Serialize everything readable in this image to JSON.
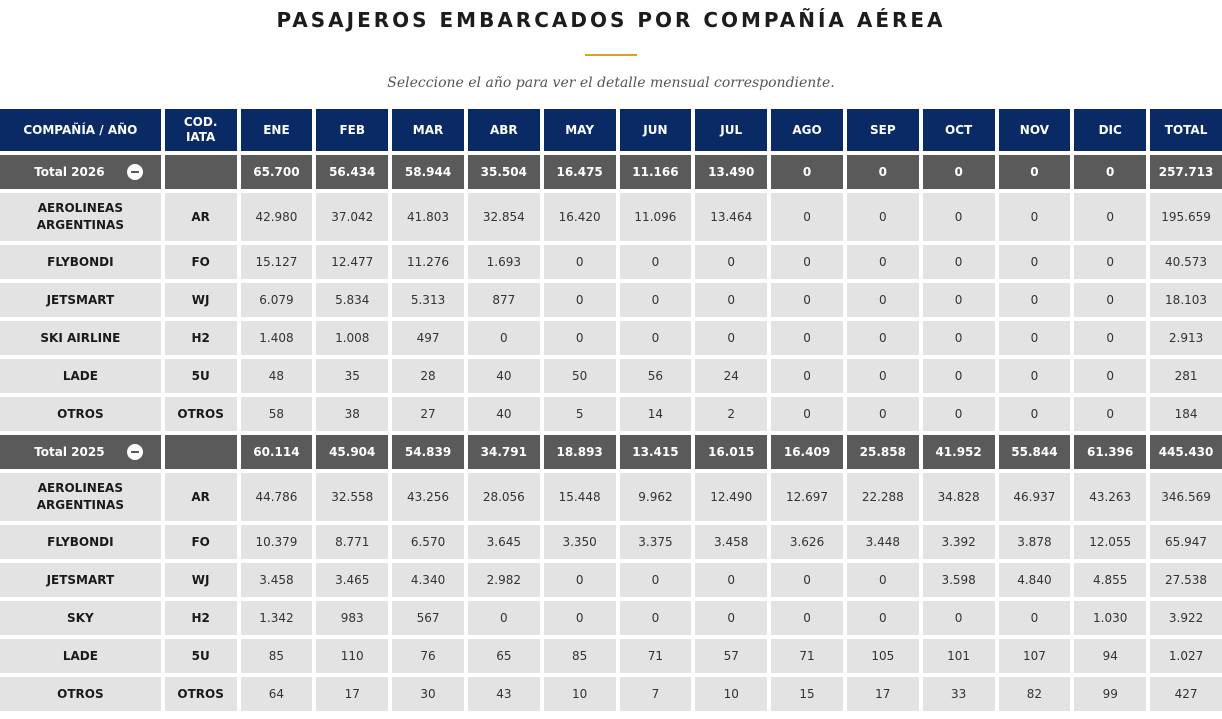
{
  "page": {
    "title": "PASAJEROS EMBARCADOS POR COMPAÑÍA AÉREA",
    "subtitle": "Seleccione el año para ver el detalle mensual correspondiente."
  },
  "headers": {
    "company": "COMPAÑÍA / AÑO",
    "iata": "COD. IATA",
    "months": [
      "ENE",
      "FEB",
      "MAR",
      "ABR",
      "MAY",
      "JUN",
      "JUL",
      "AGO",
      "SEP",
      "OCT",
      "NOV",
      "DIC"
    ],
    "total": "TOTAL"
  },
  "years": [
    {
      "label": "Total 2026",
      "totals": [
        "65.700",
        "56.434",
        "58.944",
        "35.504",
        "16.475",
        "11.166",
        "13.490",
        "0",
        "0",
        "0",
        "0",
        "0"
      ],
      "grand_total": "257.713",
      "rows": [
        {
          "company": "AEROLINEAS ARGENTINAS",
          "code": "AR",
          "values": [
            "42.980",
            "37.042",
            "41.803",
            "32.854",
            "16.420",
            "11.096",
            "13.464",
            "0",
            "0",
            "0",
            "0",
            "0"
          ],
          "total": "195.659"
        },
        {
          "company": "FLYBONDI",
          "code": "FO",
          "values": [
            "15.127",
            "12.477",
            "11.276",
            "1.693",
            "0",
            "0",
            "0",
            "0",
            "0",
            "0",
            "0",
            "0"
          ],
          "total": "40.573"
        },
        {
          "company": "JETSMART",
          "code": "WJ",
          "values": [
            "6.079",
            "5.834",
            "5.313",
            "877",
            "0",
            "0",
            "0",
            "0",
            "0",
            "0",
            "0",
            "0"
          ],
          "total": "18.103"
        },
        {
          "company": "SKI AIRLINE",
          "code": "H2",
          "values": [
            "1.408",
            "1.008",
            "497",
            "0",
            "0",
            "0",
            "0",
            "0",
            "0",
            "0",
            "0",
            "0"
          ],
          "total": "2.913"
        },
        {
          "company": "LADE",
          "code": "5U",
          "values": [
            "48",
            "35",
            "28",
            "40",
            "50",
            "56",
            "24",
            "0",
            "0",
            "0",
            "0",
            "0"
          ],
          "total": "281"
        },
        {
          "company": "OTROS",
          "code": "OTROS",
          "values": [
            "58",
            "38",
            "27",
            "40",
            "5",
            "14",
            "2",
            "0",
            "0",
            "0",
            "0",
            "0"
          ],
          "total": "184"
        }
      ]
    },
    {
      "label": "Total 2025",
      "totals": [
        "60.114",
        "45.904",
        "54.839",
        "34.791",
        "18.893",
        "13.415",
        "16.015",
        "16.409",
        "25.858",
        "41.952",
        "55.844",
        "61.396"
      ],
      "grand_total": "445.430",
      "rows": [
        {
          "company": "AEROLINEAS ARGENTINAS",
          "code": "AR",
          "values": [
            "44.786",
            "32.558",
            "43.256",
            "28.056",
            "15.448",
            "9.962",
            "12.490",
            "12.697",
            "22.288",
            "34.828",
            "46.937",
            "43.263"
          ],
          "total": "346.569"
        },
        {
          "company": "FLYBONDI",
          "code": "FO",
          "values": [
            "10.379",
            "8.771",
            "6.570",
            "3.645",
            "3.350",
            "3.375",
            "3.458",
            "3.626",
            "3.448",
            "3.392",
            "3.878",
            "12.055"
          ],
          "total": "65.947"
        },
        {
          "company": "JETSMART",
          "code": "WJ",
          "values": [
            "3.458",
            "3.465",
            "4.340",
            "2.982",
            "0",
            "0",
            "0",
            "0",
            "0",
            "3.598",
            "4.840",
            "4.855"
          ],
          "total": "27.538"
        },
        {
          "company": "SKY",
          "code": "H2",
          "values": [
            "1.342",
            "983",
            "567",
            "0",
            "0",
            "0",
            "0",
            "0",
            "0",
            "0",
            "0",
            "1.030"
          ],
          "total": "3.922"
        },
        {
          "company": "LADE",
          "code": "5U",
          "values": [
            "85",
            "110",
            "76",
            "65",
            "85",
            "71",
            "57",
            "71",
            "105",
            "101",
            "107",
            "94"
          ],
          "total": "1.027"
        },
        {
          "company": "OTROS",
          "code": "OTROS",
          "values": [
            "64",
            "17",
            "30",
            "43",
            "10",
            "7",
            "10",
            "15",
            "17",
            "33",
            "82",
            "99"
          ],
          "total": "427"
        }
      ]
    }
  ],
  "colors": {
    "header_bg": "#0a2a66",
    "total_row_bg": "#5a5a5a",
    "data_row_bg": "#e3e3e3",
    "accent_underline": "#d6a422"
  }
}
